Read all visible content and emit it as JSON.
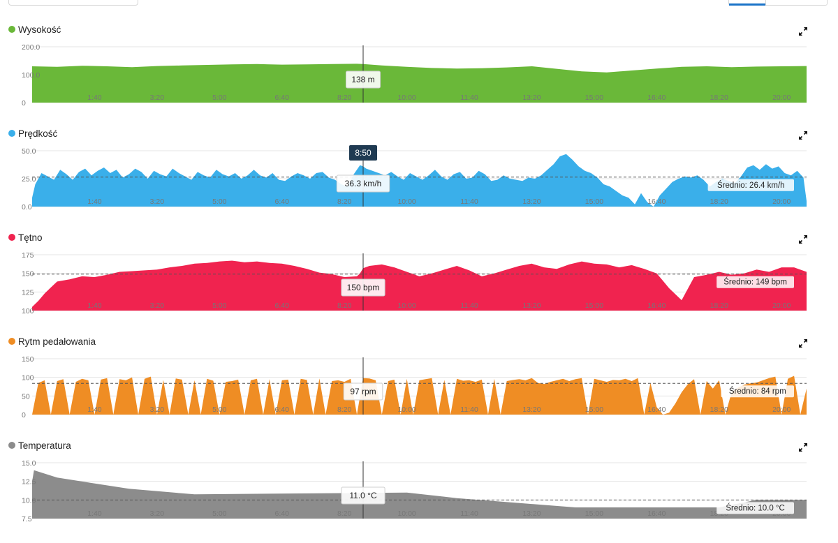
{
  "cursor_time": "8:50",
  "colors": {
    "altitude": "#6ab839",
    "speed": "#3aafea",
    "heart_rate": "#f0234f",
    "cadence": "#ef8d24",
    "temperature": "#8c8c8c",
    "grid": "#e4e4e4",
    "tick_text": "#777777",
    "cursor": "#333333",
    "time_badge": "#1f3a52"
  },
  "icons": {
    "expand": "expand-arrows-icon"
  },
  "panels": [
    {
      "key": "altitude",
      "title": "Wysokość",
      "color": "#6ab839",
      "ymin": 0,
      "ymax": 200,
      "y_ticks": [
        "200.0",
        "100.0",
        "0"
      ],
      "y_tick_values": [
        200,
        100,
        0
      ],
      "x_ticks": [
        "1:40",
        "3:20",
        "5:00",
        "6:40",
        "8:20",
        "10:00",
        "11:40",
        "13:20",
        "15:00",
        "16:40",
        "18:20",
        "20:00"
      ],
      "tooltip": "138 m",
      "average_label": "",
      "average_value": null
    },
    {
      "key": "speed",
      "title": "Prędkość",
      "color": "#3aafea",
      "ymin": 0,
      "ymax": 50,
      "y_ticks": [
        "50.0",
        "25.0",
        "0.0"
      ],
      "y_tick_values": [
        50,
        25,
        0
      ],
      "x_ticks": [
        "1:40",
        "3:20",
        "5:00",
        "6:40",
        "8:20",
        "10:00",
        "11:40",
        "13:20",
        "15:00",
        "16:40",
        "18:20",
        "20:00"
      ],
      "tooltip": "36.3 km/h",
      "average_label": "Średnio: 26.4 km/h",
      "average_value": 26.4
    },
    {
      "key": "heart_rate",
      "title": "Tętno",
      "color": "#f0234f",
      "ymin": 100,
      "ymax": 175,
      "y_ticks": [
        "175",
        "150",
        "125",
        "100"
      ],
      "y_tick_values": [
        175,
        150,
        125,
        100
      ],
      "x_ticks": [
        "1:40",
        "3:20",
        "5:00",
        "6:40",
        "8:20",
        "10:00",
        "11:40",
        "13:20",
        "15:00",
        "16:40",
        "18:20",
        "20:00"
      ],
      "tooltip": "150 bpm",
      "average_label": "Średnio: 149 bpm",
      "average_value": 149
    },
    {
      "key": "cadence",
      "title": "Rytm pedałowania",
      "color": "#ef8d24",
      "ymin": 0,
      "ymax": 150,
      "y_ticks": [
        "150",
        "100",
        "50",
        "0"
      ],
      "y_tick_values": [
        150,
        100,
        50,
        0
      ],
      "x_ticks": [
        "1:40",
        "3:20",
        "5:00",
        "6:40",
        "8:20",
        "10:00",
        "11:40",
        "13:20",
        "15:00",
        "16:40",
        "18:20",
        "20:00"
      ],
      "tooltip": "97 rpm",
      "average_label": "Średnio: 84 rpm",
      "average_value": 84
    },
    {
      "key": "temperature",
      "title": "Temperatura",
      "color": "#8c8c8c",
      "ymin": 7.5,
      "ymax": 15,
      "y_ticks": [
        "15.0",
        "12.5",
        "10.0",
        "7.5"
      ],
      "y_tick_values": [
        15,
        12.5,
        10,
        7.5
      ],
      "x_ticks": [
        "1:40",
        "3:20",
        "5:00",
        "6:40",
        "8:20",
        "10:00",
        "11:40",
        "13:20",
        "15:00",
        "16:40",
        "18:20",
        "20:00"
      ],
      "tooltip": "11.0 °C",
      "average_label": "Średnio: 10.0 °C",
      "average_value": 10.0
    }
  ],
  "chart_data": [
    {
      "type": "area",
      "title": "Wysokość",
      "x_unit": "minutes",
      "ylim": [
        0,
        200
      ],
      "grid": true,
      "x": [
        0,
        40,
        80,
        120,
        160,
        200,
        240,
        280,
        320,
        360,
        400,
        440,
        480,
        520,
        530,
        560,
        600,
        640,
        680,
        720,
        760,
        800,
        840,
        880,
        920,
        960,
        1000,
        1040,
        1080,
        1120,
        1160,
        1200,
        1240
      ],
      "values": [
        130,
        128,
        132,
        130,
        127,
        131,
        133,
        135,
        137,
        138,
        136,
        137,
        138,
        139,
        138,
        133,
        128,
        124,
        122,
        123,
        126,
        130,
        121,
        112,
        108,
        115,
        122,
        128,
        130,
        127,
        129,
        130,
        131
      ]
    },
    {
      "type": "area",
      "title": "Prędkość",
      "x_unit": "minutes",
      "ylim": [
        0,
        50
      ],
      "grid": true,
      "average": 26.4,
      "x": [
        0,
        5,
        15,
        25,
        35,
        45,
        55,
        65,
        75,
        85,
        95,
        105,
        115,
        125,
        135,
        145,
        155,
        165,
        175,
        185,
        195,
        205,
        215,
        225,
        235,
        245,
        255,
        265,
        275,
        285,
        295,
        305,
        315,
        325,
        335,
        345,
        355,
        365,
        375,
        385,
        395,
        405,
        415,
        425,
        435,
        445,
        455,
        465,
        475,
        485,
        495,
        505,
        515,
        525,
        530,
        535,
        545,
        555,
        565,
        575,
        585,
        595,
        605,
        615,
        625,
        635,
        645,
        655,
        665,
        675,
        685,
        695,
        705,
        715,
        725,
        735,
        745,
        755,
        765,
        775,
        785,
        795,
        805,
        815,
        825,
        835,
        845,
        855,
        865,
        875,
        885,
        895,
        905,
        915,
        925,
        935,
        945,
        955,
        965,
        975,
        985,
        995,
        1005,
        1015,
        1025,
        1035,
        1045,
        1055,
        1065,
        1075,
        1085,
        1095,
        1105,
        1115,
        1125,
        1135,
        1145,
        1155,
        1165,
        1175,
        1185,
        1195,
        1205,
        1215,
        1225,
        1235,
        1240
      ],
      "values": [
        8,
        20,
        30,
        27,
        24,
        33,
        29,
        24,
        31,
        34,
        28,
        32,
        35,
        30,
        33,
        26,
        29,
        34,
        31,
        25,
        32,
        29,
        27,
        34,
        30,
        27,
        24,
        31,
        28,
        26,
        33,
        29,
        27,
        30,
        25,
        28,
        33,
        28,
        26,
        30,
        24,
        23,
        27,
        30,
        28,
        25,
        30,
        31,
        26,
        24,
        20,
        18,
        29,
        37,
        36,
        34,
        32,
        30,
        28,
        31,
        27,
        24,
        30,
        27,
        24,
        28,
        33,
        27,
        24,
        29,
        31,
        25,
        26,
        32,
        29,
        23,
        24,
        28,
        25,
        24,
        23,
        26,
        25,
        28,
        33,
        38,
        45,
        47,
        42,
        36,
        32,
        30,
        26,
        20,
        18,
        14,
        10,
        8,
        2,
        12,
        4,
        0,
        10,
        16,
        22,
        25,
        27,
        26,
        28,
        24,
        18,
        22,
        25,
        23,
        21,
        27,
        35,
        37,
        33,
        38,
        34,
        36,
        30,
        28,
        32,
        26,
        5
      ],
      "cursor_value": 36.3
    },
    {
      "type": "area",
      "title": "Tętno",
      "x_unit": "minutes",
      "ylim": [
        100,
        175
      ],
      "grid": true,
      "average": 149,
      "x": [
        0,
        10,
        20,
        30,
        40,
        60,
        80,
        100,
        120,
        140,
        160,
        180,
        200,
        220,
        240,
        260,
        280,
        300,
        320,
        340,
        360,
        380,
        400,
        420,
        440,
        460,
        480,
        500,
        520,
        525,
        530,
        540,
        560,
        580,
        600,
        620,
        640,
        660,
        680,
        700,
        720,
        740,
        760,
        780,
        800,
        820,
        840,
        860,
        880,
        900,
        920,
        940,
        960,
        980,
        1000,
        1010,
        1020,
        1040,
        1060,
        1080,
        1100,
        1120,
        1140,
        1160,
        1180,
        1200,
        1220,
        1240
      ],
      "values": [
        105,
        113,
        123,
        131,
        139,
        142,
        146,
        145,
        148,
        152,
        153,
        154,
        155,
        158,
        160,
        163,
        164,
        166,
        167,
        165,
        166,
        164,
        163,
        160,
        156,
        151,
        149,
        145,
        146,
        150,
        157,
        160,
        162,
        158,
        152,
        146,
        150,
        155,
        160,
        154,
        146,
        150,
        155,
        160,
        163,
        158,
        156,
        162,
        166,
        163,
        162,
        158,
        161,
        156,
        150,
        140,
        130,
        114,
        145,
        148,
        152,
        148,
        150,
        155,
        152,
        158,
        158,
        152
      ]
    },
    {
      "type": "area",
      "title": "Rytm pedałowania",
      "x_unit": "minutes",
      "ylim": [
        0,
        150
      ],
      "grid": true,
      "average": 84,
      "x": [
        0,
        10,
        20,
        30,
        40,
        50,
        60,
        70,
        80,
        90,
        100,
        110,
        120,
        130,
        140,
        150,
        160,
        170,
        180,
        190,
        200,
        210,
        220,
        230,
        240,
        250,
        260,
        270,
        280,
        290,
        300,
        310,
        320,
        330,
        340,
        350,
        360,
        370,
        380,
        390,
        400,
        410,
        420,
        430,
        440,
        450,
        460,
        470,
        480,
        490,
        500,
        510,
        520,
        530,
        540,
        550,
        560,
        570,
        580,
        590,
        600,
        610,
        620,
        630,
        640,
        650,
        660,
        670,
        680,
        690,
        700,
        710,
        720,
        730,
        740,
        750,
        760,
        770,
        780,
        790,
        800,
        810,
        820,
        830,
        840,
        850,
        860,
        870,
        880,
        890,
        900,
        910,
        920,
        930,
        940,
        950,
        960,
        970,
        980,
        990,
        1000,
        1010,
        1020,
        1030,
        1040,
        1050,
        1060,
        1070,
        1080,
        1090,
        1100,
        1110,
        1120,
        1130,
        1140,
        1150,
        1160,
        1170,
        1180,
        1190,
        1200,
        1210,
        1220,
        1230,
        1240
      ],
      "values": [
        0,
        85,
        92,
        0,
        90,
        95,
        0,
        88,
        96,
        92,
        0,
        94,
        98,
        0,
        95,
        92,
        100,
        0,
        96,
        102,
        0,
        93,
        0,
        97,
        94,
        0,
        92,
        0,
        96,
        91,
        0,
        88,
        90,
        94,
        0,
        92,
        96,
        0,
        95,
        0,
        92,
        94,
        0,
        96,
        93,
        0,
        97,
        0,
        90,
        92,
        88,
        96,
        0,
        98,
        97,
        92,
        0,
        90,
        94,
        0,
        96,
        0,
        92,
        95,
        98,
        0,
        93,
        0,
        96,
        91,
        92,
        88,
        94,
        0,
        96,
        0,
        90,
        93,
        95,
        92,
        98,
        85,
        82,
        88,
        92,
        96,
        90,
        95,
        98,
        0,
        96,
        92,
        88,
        93,
        92,
        96,
        90,
        98,
        0,
        85,
        20,
        0,
        5,
        30,
        60,
        82,
        95,
        0,
        90,
        70,
        92,
        0,
        60,
        72,
        80,
        84,
        86,
        92,
        98,
        102,
        0,
        96,
        104,
        0,
        70
      ],
      "cursor_value": 97
    },
    {
      "type": "area",
      "title": "Temperatura",
      "x_unit": "minutes",
      "ylim": [
        7.5,
        15
      ],
      "grid": true,
      "average": 10.0,
      "x": [
        0,
        3,
        40,
        155,
        260,
        600,
        680,
        870,
        1100,
        1160,
        1240
      ],
      "values": [
        12.5,
        14.0,
        13.0,
        11.5,
        10.75,
        11.0,
        10.25,
        9.0,
        9.0,
        10.0,
        10.0
      ],
      "cursor_value": 11.0
    }
  ]
}
